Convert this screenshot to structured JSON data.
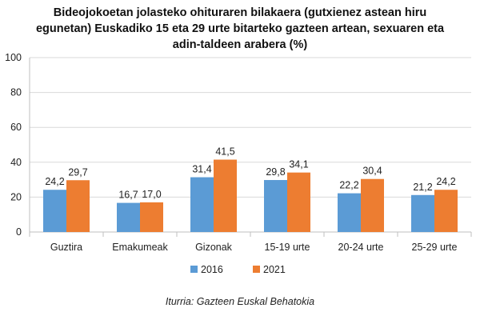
{
  "chart_data": {
    "type": "bar",
    "title": "Bideojokoetan jolasteko ohituraren bilakaera (gutxienez astean hiru egunetan) Euskadiko 15 eta 29 urte bitarteko gazteen artean, sexuaren eta adin-taldeen arabera (%)",
    "categories": [
      "Guztira",
      "Emakumeak",
      "Gizonak",
      "15-19 urte",
      "20-24 urte",
      "25-29 urte"
    ],
    "series": [
      {
        "name": "2016",
        "color": "#5b9bd5",
        "values": [
          24.2,
          16.7,
          31.4,
          29.8,
          22.2,
          21.2
        ],
        "labels": [
          "24,2",
          "16,7",
          "31,4",
          "29,8",
          "22,2",
          "21,2"
        ]
      },
      {
        "name": "2021",
        "color": "#ed7d31",
        "values": [
          29.7,
          17.0,
          41.5,
          34.1,
          30.4,
          24.2
        ],
        "labels": [
          "29,7",
          "17,0",
          "41,5",
          "34,1",
          "30,4",
          "24,2"
        ]
      }
    ],
    "ylim": [
      0,
      100
    ],
    "yticks": [
      0,
      20,
      40,
      60,
      80,
      100
    ],
    "xlabel": "",
    "ylabel": "",
    "grid": true,
    "legend_position": "bottom"
  },
  "source": "Iturria: Gazteen Euskal Behatokia"
}
